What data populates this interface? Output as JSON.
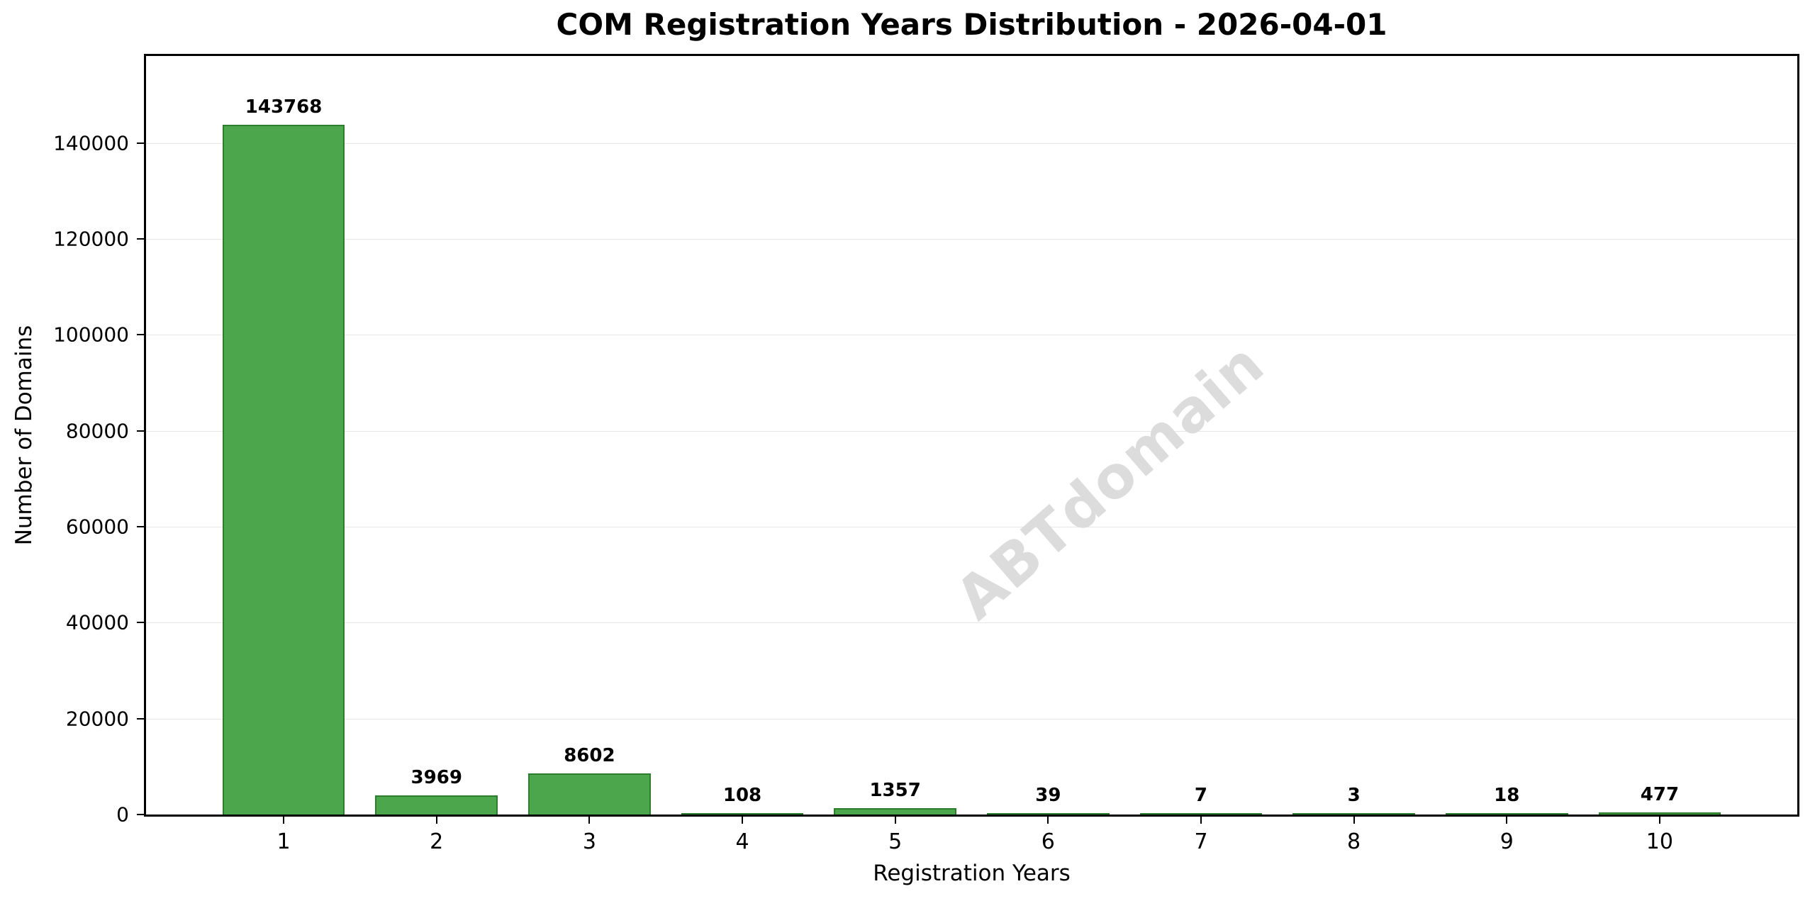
{
  "figure": {
    "background": "#ffffff"
  },
  "chart_data": {
    "type": "bar",
    "title": "COM Registration Years Distribution - 2026-04-01",
    "xlabel": "Registration Years",
    "ylabel": "Number of Domains",
    "categories": [
      "1",
      "2",
      "3",
      "4",
      "5",
      "6",
      "7",
      "8",
      "9",
      "10"
    ],
    "values": [
      143768,
      3969,
      8602,
      108,
      1357,
      39,
      7,
      3,
      18,
      477
    ],
    "bar_value_labels": [
      "143768",
      "3969",
      "8602",
      "108",
      "1357",
      "39",
      "7",
      "3",
      "18",
      "477"
    ],
    "yticks": [
      0,
      20000,
      40000,
      60000,
      80000,
      100000,
      120000,
      140000
    ],
    "ylim": [
      0,
      158145
    ],
    "xlim": [
      0.1,
      10.9
    ],
    "bar_width": 0.8,
    "grid": "horizontal-only",
    "legend": "none",
    "watermark_text": "ABTdomain",
    "colors": {
      "bar_fill": "#4CA64C",
      "bar_edge": "#2D7D2E",
      "grid_line": "#E7E7E7",
      "axis_line": "#000000",
      "text": "#000000",
      "watermark": "#DCDCDC"
    }
  }
}
